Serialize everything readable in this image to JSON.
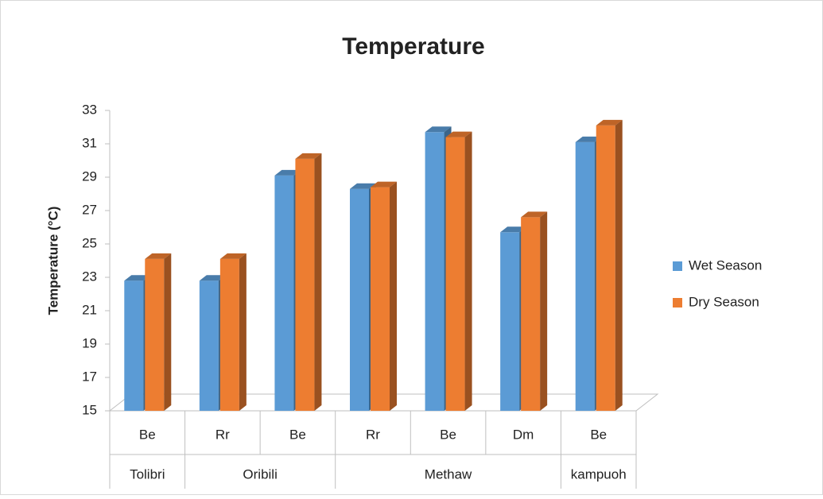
{
  "chart_data": {
    "type": "bar3d",
    "title": "Temperature",
    "y_label": "Temperature (°C)",
    "groups": [
      {
        "name": "Tolibri",
        "categories": [
          "Be"
        ]
      },
      {
        "name": "Oribili",
        "categories": [
          "Rr",
          "Be"
        ]
      },
      {
        "name": "Methaw",
        "categories": [
          "Rr",
          "Be",
          "Dm"
        ]
      },
      {
        "name": "kampuoh",
        "categories": [
          "Be"
        ]
      }
    ],
    "series": [
      {
        "name": "Wet Season",
        "color": "#5b9bd5",
        "values": [
          22.8,
          22.8,
          29.1,
          28.3,
          31.7,
          25.7,
          31.1
        ]
      },
      {
        "name": "Dry Season",
        "color": "#ed7d31",
        "values": [
          24.1,
          24.1,
          30.1,
          28.4,
          31.4,
          26.6,
          32.1
        ]
      }
    ],
    "ylim": [
      15,
      33
    ],
    "yticks": [
      15,
      17,
      19,
      21,
      23,
      25,
      27,
      29,
      31,
      33
    ],
    "grid": false,
    "legend": "right"
  }
}
